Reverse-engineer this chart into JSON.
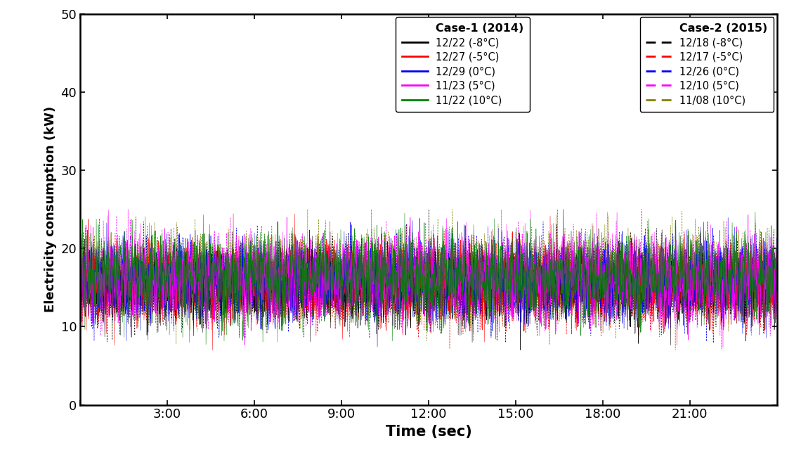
{
  "title": "",
  "xlabel": "Time (sec)",
  "ylabel": "Electricity consumption (kW)",
  "xlim": [
    0,
    86400
  ],
  "ylim": [
    0,
    50
  ],
  "yticks": [
    0,
    10,
    20,
    30,
    40,
    50
  ],
  "xtick_positions": [
    0,
    10800,
    21600,
    32400,
    43200,
    54000,
    64800,
    75600
  ],
  "xtick_labels": [
    "",
    "3:00",
    "6:00",
    "9:00",
    "12:00",
    "15:00",
    "18:00",
    "21:00"
  ],
  "case1_colors": [
    "#000000",
    "#ff0000",
    "#0000ff",
    "#ff00ff",
    "#008000"
  ],
  "case2_colors": [
    "#000000",
    "#ff0000",
    "#0000ff",
    "#ff00ff",
    "#808000"
  ],
  "case1_labels": [
    "12/22 (-8°C)",
    "12/27 (-5°C)",
    "12/29 (0°C)",
    "11/23 (5°C)",
    "11/22 (10°C)"
  ],
  "case2_labels": [
    "12/18 (-8°C)",
    "12/17 (-5°C)",
    "12/26 (0°C)",
    "12/10 (5°C)",
    "11/08 (10°C)"
  ],
  "legend_case1_title": "Case-1 (2014)",
  "legend_case2_title": "Case-2 (2015)",
  "n_points": 2880,
  "seed": 42,
  "background_color": "#ffffff"
}
